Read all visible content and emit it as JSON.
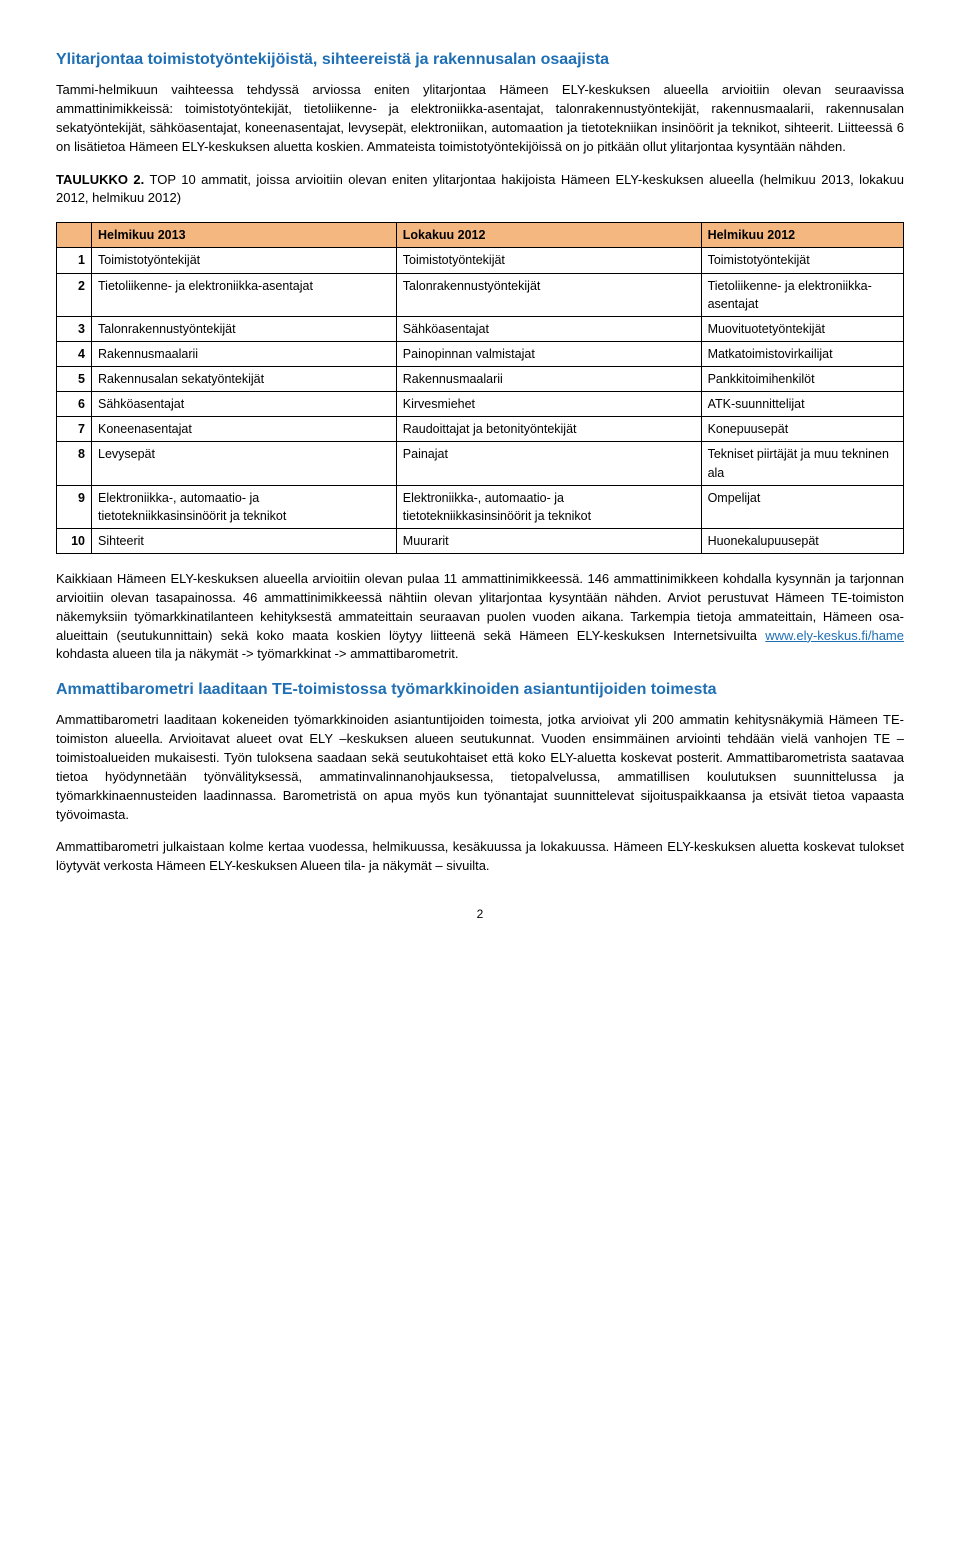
{
  "heading1": "Ylitarjontaa toimistotyöntekijöistä, sihteereistä ja rakennusalan osaajista",
  "para1": "Tammi-helmikuun vaihteessa tehdyssä arviossa eniten ylitarjontaa Hämeen ELY-keskuksen alueella arvioitiin olevan seuraavissa ammattinimikkeissä: toimistotyöntekijät, tietoliikenne- ja elektroniikka-asentajat, talonrakennustyöntekijät, rakennusmaalarii, rakennusalan sekatyöntekijät, sähköasentajat, koneenasentajat, levysepät, elektroniikan, automaation ja tietotekniikan insinöörit ja teknikot, sihteerit. Liitteessä 6 on lisätietoa Hämeen ELY-keskuksen aluetta koskien. Ammateista toimistotyöntekijöissä on jo pitkään ollut ylitarjontaa kysyntään nähden.",
  "tableCaption1": "TAULUKKO 2.",
  "tableCaption2": " TOP 10 ammatit, joissa arvioitiin olevan eniten ylitarjontaa hakijoista Hämeen ELY-keskuksen alueella (helmikuu 2013, lokakuu 2012, helmikuu 2012)",
  "th": {
    "blank": "",
    "c1": "Helmikuu 2013",
    "c2": "Lokakuu 2012",
    "c3": "Helmikuu 2012"
  },
  "rows": [
    {
      "n": "1",
      "a": "Toimistotyöntekijät",
      "b": "Toimistotyöntekijät",
      "c": "Toimistotyöntekijät"
    },
    {
      "n": "2",
      "a": "Tietoliikenne- ja elektroniikka-asentajat",
      "b": "Talonrakennustyöntekijät",
      "c": "Tietoliikenne- ja elektroniikka-asentajat"
    },
    {
      "n": "3",
      "a": "Talonrakennustyöntekijät",
      "b": "Sähköasentajat",
      "c": "Muovituotetyöntekijät"
    },
    {
      "n": "4",
      "a": "Rakennusmaalarii",
      "b": "Painopinnan valmistajat",
      "c": "Matkatoimistovirkailijat"
    },
    {
      "n": "5",
      "a": "Rakennusalan sekatyöntekijät",
      "b": "Rakennusmaalarii",
      "c": "Pankkitoimihenkilöt"
    },
    {
      "n": "6",
      "a": "Sähköasentajat",
      "b": "Kirvesmiehet",
      "c": "ATK-suunnittelijat"
    },
    {
      "n": "7",
      "a": "Koneenasentajat",
      "b": "Raudoittajat ja betonityöntekijät",
      "c": "Konepuusepät"
    },
    {
      "n": "8",
      "a": "Levysepät",
      "b": "Painajat",
      "c": "Tekniset piirtäjät ja muu tekninen ala"
    },
    {
      "n": "9",
      "a": "Elektroniikka-, automaatio- ja tietotekniikkasinsinöörit ja teknikot",
      "b": "Elektroniikka-, automaatio- ja tietotekniikkasinsinöörit ja teknikot",
      "c": "Ompelijat"
    },
    {
      "n": "10",
      "a": "Sihteerit",
      "b": "Muurarit",
      "c": "Huonekalupuusepät"
    }
  ],
  "para2a": "Kaikkiaan Hämeen ELY-keskuksen alueella arvioitiin olevan pulaa 11 ammattinimikkeessä. 146 ammattinimikkeen kohdalla kysynnän ja tarjonnan arvioitiin olevan tasapainossa. 46 ammattinimikkeessä nähtiin olevan ylitarjontaa kysyntään nähden. Arviot perustuvat Hämeen TE-toimiston näkemyksiin työmarkkinatilanteen kehityksestä ammateittain seuraavan puolen vuoden aikana. Tarkempia tietoja ammateittain, Hämeen osa-alueittain (seutukunnittain) sekä koko maata koskien löytyy liitteenä sekä Hämeen ELY-keskuksen Internetsivuilta ",
  "link": "www.ely-keskus.fi/hame",
  "para2b": " kohdasta alueen tila ja näkymät -> työmarkkinat -> ammattibarometrit.",
  "heading2": "Ammattibarometri laaditaan TE-toimistossa työmarkkinoiden asiantuntijoiden toimesta",
  "para3": "Ammattibarometri laaditaan kokeneiden työmarkkinoiden asiantuntijoiden toimesta, jotka arvioivat yli 200 ammatin kehitysnäkymiä Hämeen TE-toimiston alueella. Arvioitavat alueet ovat ELY –keskuksen alueen seutukunnat. Vuoden ensimmäinen arviointi tehdään vielä vanhojen TE –toimistoalueiden mukaisesti. Työn tuloksena saadaan sekä seutukohtaiset että koko ELY-aluetta koskevat posterit. Ammattibarometrista saatavaa tietoa hyödynnetään työnvälityksessä, ammatinvalinnanohjauksessa, tietopalvelussa, ammatillisen koulutuksen suunnittelussa ja työmarkkinaennusteiden laadinnassa. Barometristä on apua myös kun työnantajat suunnittelevat sijoituspaikkaansa ja etsivät tietoa vapaasta työvoimasta.",
  "para4": "Ammattibarometri julkaistaan kolme kertaa vuodessa, helmikuussa, kesäkuussa ja lokakuussa. Hämeen ELY-keskuksen aluetta koskevat tulokset löytyvät verkosta Hämeen ELY-keskuksen Alueen tila- ja näkymät – sivuilta.",
  "pageNum": "2"
}
